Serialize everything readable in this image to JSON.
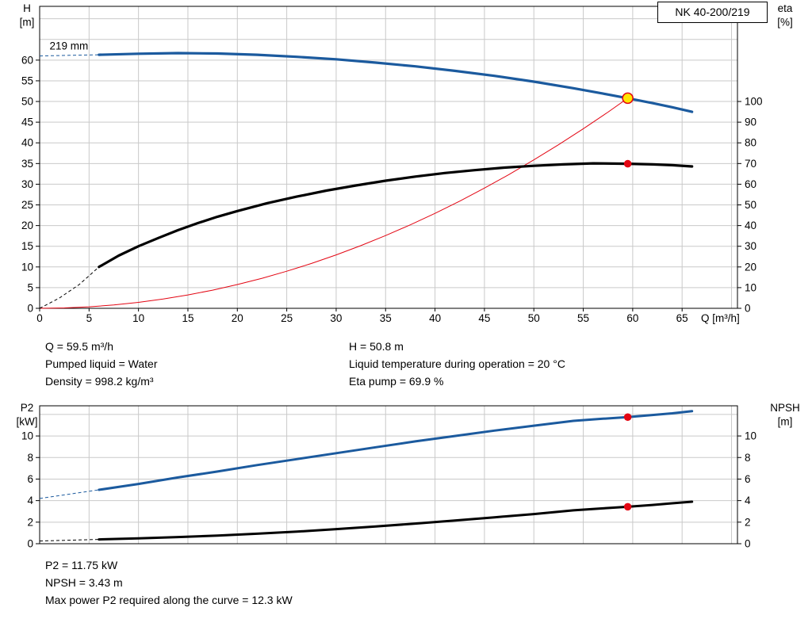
{
  "title_box": {
    "label": "NK 40-200/219"
  },
  "colors": {
    "blue": "#1b5a9e",
    "black": "#000000",
    "red": "#e30613",
    "yellow": "#ffe500",
    "grid": "#c9c9c9",
    "axis": "#000000"
  },
  "info_top": {
    "col1": [
      "Q = 59.5 m³/h",
      "Pumped liquid = Water",
      "Density = 998.2 kg/m³"
    ],
    "col2": [
      "H = 50.8 m",
      "Liquid temperature during operation = 20 °C",
      "Eta pump = 69.9 %"
    ]
  },
  "info_bottom": {
    "lines": [
      "P2 = 11.75 kW",
      "NPSH = 3.43 m",
      "Max power P2 required along the curve = 12.3 kW"
    ]
  },
  "chart_data": [
    {
      "name": "qh",
      "type": "line",
      "title": "NK 40-200/219",
      "x_axis": {
        "label": "Q [m³/h]",
        "min": 0,
        "max": 70.6,
        "ticks": [
          0,
          5,
          10,
          15,
          20,
          25,
          30,
          35,
          40,
          45,
          50,
          55,
          60,
          65
        ],
        "grid": [
          5,
          10,
          15,
          20,
          25,
          30,
          35,
          40,
          45,
          50,
          55,
          60,
          65,
          70
        ]
      },
      "y_left": {
        "label_lines": [
          "H",
          "[m]"
        ],
        "min": 0,
        "max": 73,
        "ticks": [
          0,
          5,
          10,
          15,
          20,
          25,
          30,
          35,
          40,
          45,
          50,
          55,
          60
        ],
        "grid": [
          5,
          10,
          15,
          20,
          25,
          30,
          35,
          40,
          45,
          50,
          55,
          60,
          65,
          70
        ]
      },
      "y_right": {
        "label_lines": [
          "eta",
          "[%]"
        ],
        "min": 0,
        "max": 146,
        "ticks": [
          0,
          10,
          20,
          30,
          40,
          50,
          60,
          70,
          80,
          90,
          100
        ]
      },
      "series": [
        {
          "name": "system-curve",
          "axis": "left",
          "color": "red",
          "width": 1,
          "points": [
            [
              0,
              0
            ],
            [
              2.5,
              0.09
            ],
            [
              5,
              0.36
            ],
            [
              7.5,
              0.81
            ],
            [
              10,
              1.43
            ],
            [
              12.5,
              2.24
            ],
            [
              15,
              3.23
            ],
            [
              17.5,
              4.39
            ],
            [
              20,
              5.74
            ],
            [
              22.5,
              7.26
            ],
            [
              25,
              8.97
            ],
            [
              27.5,
              10.85
            ],
            [
              30,
              12.91
            ],
            [
              32.5,
              15.15
            ],
            [
              35,
              17.58
            ],
            [
              37.5,
              20.17
            ],
            [
              40,
              22.96
            ],
            [
              42.5,
              25.91
            ],
            [
              45,
              29.06
            ],
            [
              47.5,
              32.36
            ],
            [
              50,
              35.88
            ],
            [
              52.5,
              39.54
            ],
            [
              55,
              43.41
            ],
            [
              57.5,
              47.43
            ],
            [
              59.5,
              50.8
            ]
          ]
        },
        {
          "name": "head-curve",
          "axis": "left",
          "color": "blue",
          "width": 3.2,
          "dashed": [
            [
              0,
              61
            ],
            [
              3,
              61.15
            ],
            [
              6,
              61.3
            ]
          ],
          "points": [
            [
              6,
              61.3
            ],
            [
              10,
              61.55
            ],
            [
              14,
              61.7
            ],
            [
              18,
              61.6
            ],
            [
              22,
              61.3
            ],
            [
              26,
              60.8
            ],
            [
              30,
              60.2
            ],
            [
              34,
              59.4
            ],
            [
              38,
              58.5
            ],
            [
              42,
              57.4
            ],
            [
              46,
              56.2
            ],
            [
              50,
              54.8
            ],
            [
              54,
              53.2
            ],
            [
              57,
              51.9
            ],
            [
              59.5,
              50.8
            ],
            [
              62,
              49.6
            ],
            [
              64,
              48.6
            ],
            [
              66,
              47.5
            ]
          ]
        },
        {
          "name": "efficiency-curve",
          "axis": "right",
          "color": "black",
          "width": 3.2,
          "dashed": [
            [
              0,
              0
            ],
            [
              2,
              5
            ],
            [
              4,
              11.5
            ],
            [
              6,
              20
            ]
          ],
          "points": [
            [
              6,
              20
            ],
            [
              8,
              25.5
            ],
            [
              10,
              30
            ],
            [
              12,
              34
            ],
            [
              14,
              37.8
            ],
            [
              16,
              41.2
            ],
            [
              18,
              44.3
            ],
            [
              20,
              47
            ],
            [
              23,
              50.8
            ],
            [
              26,
              54
            ],
            [
              29,
              56.9
            ],
            [
              32,
              59.4
            ],
            [
              35,
              61.7
            ],
            [
              38,
              63.7
            ],
            [
              41,
              65.4
            ],
            [
              44,
              66.8
            ],
            [
              47,
              68
            ],
            [
              50,
              68.9
            ],
            [
              53,
              69.6
            ],
            [
              56,
              70.1
            ],
            [
              59.5,
              69.9
            ],
            [
              62,
              69.6
            ],
            [
              64,
              69.2
            ],
            [
              66,
              68.6
            ]
          ]
        }
      ],
      "markers": [
        {
          "name": "duty-point-marker",
          "x": 59.5,
          "y": 50.8,
          "axis": "left",
          "r": 6.5,
          "fill": "yellow",
          "stroke": "red"
        },
        {
          "name": "efficiency-point-marker",
          "x": 59.5,
          "y": 69.9,
          "axis": "right",
          "r": 4.8,
          "fill": "red"
        }
      ],
      "annotations": [
        {
          "name": "impeller-diameter-label",
          "text": "219 mm",
          "x": 1,
          "y": 62.6,
          "axis": "left"
        }
      ]
    },
    {
      "name": "p2-npsh",
      "type": "line",
      "title": "",
      "x_axis": {
        "label": "",
        "min": 0,
        "max": 70.6,
        "ticks": [],
        "grid": [
          5,
          10,
          15,
          20,
          25,
          30,
          35,
          40,
          45,
          50,
          55,
          60,
          65,
          70
        ]
      },
      "y_left": {
        "label_lines": [
          "P2",
          "[kW]"
        ],
        "min": 0,
        "max": 12.8,
        "ticks": [
          0,
          2,
          4,
          6,
          8,
          10
        ],
        "grid": [
          2,
          4,
          6,
          8,
          10,
          12
        ]
      },
      "y_right": {
        "label_lines": [
          "NPSH",
          "[m]"
        ],
        "min": 0,
        "max": 12.8,
        "ticks": [
          0,
          2,
          4,
          6,
          8,
          10
        ]
      },
      "series": [
        {
          "name": "power-curve",
          "axis": "left",
          "color": "blue",
          "width": 3,
          "dashed": [
            [
              0,
              4.2
            ],
            [
              3,
              4.6
            ],
            [
              6,
              5.0
            ]
          ],
          "points": [
            [
              6,
              5.0
            ],
            [
              10,
              5.55
            ],
            [
              14,
              6.15
            ],
            [
              18,
              6.7
            ],
            [
              22,
              7.3
            ],
            [
              26,
              7.85
            ],
            [
              30,
              8.4
            ],
            [
              34,
              8.95
            ],
            [
              38,
              9.5
            ],
            [
              42,
              10.0
            ],
            [
              46,
              10.5
            ],
            [
              50,
              10.95
            ],
            [
              54,
              11.4
            ],
            [
              57,
              11.6
            ],
            [
              59.5,
              11.75
            ],
            [
              62,
              11.95
            ],
            [
              64,
              12.1
            ],
            [
              66,
              12.3
            ]
          ]
        },
        {
          "name": "npsh-curve",
          "axis": "right",
          "color": "black",
          "width": 3,
          "dashed": [
            [
              0,
              0.25
            ],
            [
              3,
              0.32
            ],
            [
              6,
              0.4
            ]
          ],
          "points": [
            [
              6,
              0.4
            ],
            [
              10,
              0.5
            ],
            [
              14,
              0.62
            ],
            [
              18,
              0.76
            ],
            [
              22,
              0.93
            ],
            [
              26,
              1.12
            ],
            [
              30,
              1.35
            ],
            [
              34,
              1.6
            ],
            [
              38,
              1.87
            ],
            [
              42,
              2.15
            ],
            [
              46,
              2.45
            ],
            [
              50,
              2.75
            ],
            [
              54,
              3.1
            ],
            [
              57,
              3.28
            ],
            [
              59.5,
              3.43
            ],
            [
              62,
              3.6
            ],
            [
              64,
              3.75
            ],
            [
              66,
              3.9
            ]
          ]
        }
      ],
      "markers": [
        {
          "name": "power-point-marker",
          "x": 59.5,
          "y": 11.75,
          "axis": "left",
          "r": 4.8,
          "fill": "red"
        },
        {
          "name": "npsh-point-marker",
          "x": 59.5,
          "y": 3.43,
          "axis": "right",
          "r": 4.8,
          "fill": "red"
        }
      ],
      "annotations": []
    }
  ]
}
